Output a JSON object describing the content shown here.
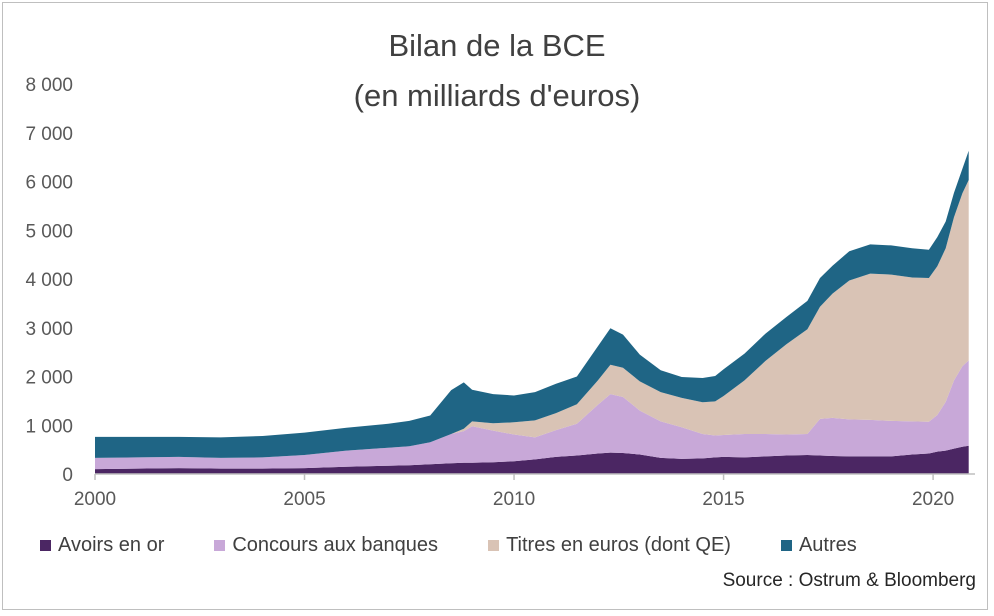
{
  "chart_data": {
    "type": "area",
    "stacked": true,
    "title": "Bilan de la BCE",
    "subtitle": "(en milliards d'euros)",
    "xlabel": "",
    "ylabel": "",
    "xlim": [
      2000,
      2021
    ],
    "ylim": [
      0,
      8000
    ],
    "xticks": [
      2000,
      2005,
      2010,
      2015,
      2020
    ],
    "yticks": [
      0,
      1000,
      2000,
      3000,
      4000,
      5000,
      6000,
      7000,
      8000
    ],
    "ytick_labels": [
      "0",
      "1 000",
      "2 000",
      "3 000",
      "4 000",
      "5 000",
      "6 000",
      "7 000",
      "8 000"
    ],
    "grid": false,
    "legend_position": "bottom",
    "x": [
      2000,
      2001,
      2002,
      2003,
      2004,
      2005,
      2006,
      2007,
      2007.5,
      2008,
      2008.5,
      2008.8,
      2009,
      2009.5,
      2010,
      2010.5,
      2011,
      2011.5,
      2012,
      2012.3,
      2012.6,
      2013,
      2013.5,
      2014,
      2014.5,
      2014.8,
      2015,
      2015.5,
      2016,
      2016.5,
      2017,
      2017.3,
      2017.6,
      2018,
      2018.5,
      2019,
      2019.5,
      2019.9,
      2020.1,
      2020.3,
      2020.5,
      2020.7,
      2020.85
    ],
    "series": [
      {
        "name": "Avoirs en or",
        "color": "#4b2663",
        "values": [
          100,
          110,
          120,
          110,
          110,
          120,
          150,
          170,
          180,
          200,
          220,
          230,
          230,
          240,
          260,
          300,
          350,
          380,
          420,
          440,
          430,
          400,
          330,
          310,
          320,
          340,
          350,
          340,
          360,
          380,
          390,
          380,
          370,
          360,
          360,
          360,
          400,
          420,
          460,
          480,
          520,
          560,
          580
        ]
      },
      {
        "name": "Concours aux banques",
        "color": "#c8a8d8",
        "values": [
          230,
          230,
          230,
          220,
          230,
          270,
          330,
          370,
          390,
          450,
          600,
          650,
          750,
          650,
          550,
          450,
          550,
          650,
          1000,
          1200,
          1150,
          900,
          750,
          650,
          500,
          450,
          450,
          480,
          460,
          430,
          430,
          750,
          780,
          760,
          750,
          730,
          680,
          650,
          750,
          1000,
          1400,
          1650,
          1750
        ]
      },
      {
        "name": "Titres en euros (dont QE)",
        "color": "#d9c3b5",
        "values": [
          0,
          0,
          0,
          0,
          0,
          0,
          0,
          0,
          0,
          0,
          0,
          50,
          100,
          150,
          250,
          350,
          350,
          400,
          500,
          600,
          600,
          600,
          600,
          600,
          650,
          700,
          800,
          1100,
          1500,
          1850,
          2150,
          2300,
          2550,
          2850,
          3000,
          3000,
          2950,
          2950,
          3050,
          3150,
          3350,
          3550,
          3700
        ]
      },
      {
        "name": "Autres",
        "color": "#1f6585",
        "values": [
          430,
          420,
          410,
          420,
          440,
          460,
          470,
          490,
          520,
          550,
          900,
          950,
          650,
          600,
          550,
          580,
          600,
          570,
          700,
          750,
          680,
          550,
          450,
          430,
          500,
          520,
          550,
          550,
          560,
          560,
          580,
          590,
          570,
          600,
          600,
          600,
          600,
          580,
          600,
          550,
          500,
          500,
          600
        ]
      }
    ]
  },
  "source": "Source : Ostrum & Bloomberg"
}
